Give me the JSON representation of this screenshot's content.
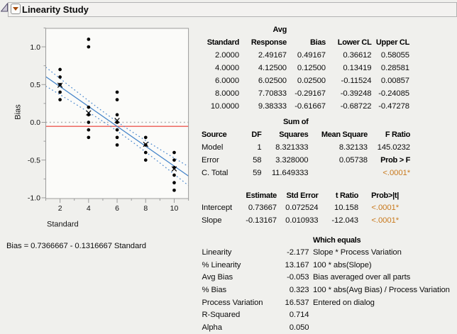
{
  "header": {
    "title": "Linearity Study",
    "outline_icon": "collapsed-tree-triangle",
    "disclosure_icon": "disclosure-triangle-down"
  },
  "equation": "Bias = 0.7366667 - 0.1316667 Standard",
  "colors": {
    "fit_line": "#4282C8",
    "confidence_band": "#4C89CF",
    "avg_bias_line": "#EC5A52",
    "zero_line": "#ABABAB",
    "points": "#000000",
    "frame": "#9C9C9C",
    "plot_background": "#FBFBF9",
    "window_background": "#F0F0ED",
    "significance": "#C97A1E",
    "disclosure_triangle": "#A54A0A"
  },
  "chart_data": {
    "type": "scatter",
    "title": "",
    "xlabel": "Standard",
    "ylabel": "Bias",
    "xlim": [
      1,
      11
    ],
    "ylim": [
      -1.01,
      1.245
    ],
    "x_ticks": [
      2,
      4,
      6,
      8,
      10
    ],
    "x_minor_ticks": [
      1,
      3,
      5,
      7,
      9,
      11
    ],
    "y_ticks": [
      -1.0,
      -0.5,
      0.0,
      0.5,
      1.0
    ],
    "y_tick_labels": [
      "-1.0",
      "-0.5",
      "0.0",
      "0.5",
      "1.0"
    ],
    "y_minor_ticks": [
      -0.75,
      -0.25,
      0.25,
      0.75,
      1.25
    ],
    "grid": false,
    "points": [
      {
        "standard": 2,
        "bias_values": [
          0.3,
          0.4,
          0.5,
          0.6,
          0.7
        ]
      },
      {
        "standard": 4,
        "bias_values": [
          -0.2,
          -0.1,
          0.0,
          0.1,
          0.2,
          1.0,
          1.1
        ]
      },
      {
        "standard": 6,
        "bias_values": [
          -0.3,
          -0.2,
          -0.1,
          0.0,
          0.1,
          0.3,
          0.4
        ]
      },
      {
        "standard": 8,
        "bias_values": [
          -0.5,
          -0.4,
          -0.3,
          -0.2
        ]
      },
      {
        "standard": 10,
        "bias_values": [
          -0.9,
          -0.8,
          -0.7,
          -0.6,
          -0.5,
          -0.4
        ]
      }
    ],
    "mean_markers": [
      {
        "standard": 2,
        "bias": 0.49167
      },
      {
        "standard": 4,
        "bias": 0.125
      },
      {
        "standard": 6,
        "bias": 0.025
      },
      {
        "standard": 8,
        "bias": -0.29167
      },
      {
        "standard": 10,
        "bias": -0.61667
      }
    ],
    "fit_line": {
      "intercept": 0.7366667,
      "slope": -0.1316667
    },
    "confidence_band": {
      "halfwidth_scale": 0.47941,
      "n": 60,
      "xbar": 6,
      "sxx": 480
    },
    "reference_lines": [
      {
        "y": 0.0,
        "style": "dotted",
        "role": "zero_line"
      },
      {
        "y": -0.053,
        "style": "solid",
        "role": "avg_bias_line"
      }
    ]
  },
  "tables": [
    {
      "name": "bias-by-standard-table",
      "rows": [
        [
          "",
          {
            "t": "Avg",
            "b": 1
          },
          "",
          "",
          ""
        ],
        [
          {
            "t": "Standard",
            "b": 1
          },
          {
            "t": "Response",
            "b": 1
          },
          {
            "t": "Bias",
            "b": 1
          },
          {
            "t": "Lower CL",
            "b": 1
          },
          {
            "t": "Upper CL",
            "b": 1
          }
        ],
        [
          "2.0000",
          "2.49167",
          "0.49167",
          "0.36612",
          "0.58055"
        ],
        [
          "4.0000",
          "4.12500",
          "0.12500",
          "0.13419",
          "0.28581"
        ],
        [
          "6.0000",
          "6.02500",
          "0.02500",
          "-0.11524",
          "0.00857"
        ],
        [
          "8.0000",
          "7.70833",
          "-0.29167",
          "-0.39248",
          "-0.24085"
        ],
        [
          "10.0000",
          "9.38333",
          "-0.61667",
          "-0.68722",
          "-0.47278"
        ]
      ]
    },
    {
      "name": "anova-table",
      "rows": [
        [
          "",
          "",
          {
            "t": "Sum of",
            "b": 1
          },
          "",
          ""
        ],
        [
          {
            "t": "Source",
            "b": 1
          },
          {
            "t": "DF",
            "b": 1
          },
          {
            "t": "Squares",
            "b": 1
          },
          {
            "t": "Mean Square",
            "b": 1
          },
          {
            "t": "F Ratio",
            "b": 1
          }
        ],
        [
          "Model",
          "1",
          "8.321333",
          "8.32133",
          "145.0232"
        ],
        [
          "Error",
          "58",
          "3.328000",
          "0.05738",
          {
            "t": "Prob > F",
            "b": 1
          }
        ],
        [
          "C. Total",
          "59",
          "11.649333",
          "",
          {
            "t": "<.0001*",
            "o": 1
          }
        ]
      ]
    },
    {
      "name": "parameter-estimates-table",
      "rows": [
        [
          "",
          {
            "t": "Estimate",
            "b": 1
          },
          {
            "t": "Std Error",
            "b": 1
          },
          {
            "t": "t Ratio",
            "b": 1
          },
          {
            "t": "Prob>|t|",
            "b": 1
          }
        ],
        [
          "Intercept",
          "0.73667",
          "0.072524",
          "10.158",
          {
            "t": "<.0001*",
            "o": 1
          }
        ],
        [
          "Slope",
          "-0.13167",
          "0.010933",
          "-12.043",
          {
            "t": "<.0001*",
            "o": 1
          }
        ]
      ]
    },
    {
      "name": "linearity-summary-table",
      "rows": [
        [
          "",
          "",
          {
            "t": "Which equals",
            "b": 1
          }
        ],
        [
          "Linearity",
          "-2.177",
          "Slope * Process Variation"
        ],
        [
          "% Linearity",
          "13.167",
          "100 * abs(Slope)"
        ],
        [
          "Avg Bias",
          "-0.053",
          "Bias averaged over all parts"
        ],
        [
          "% Bias",
          "0.323",
          "100 * abs(Avg Bias) / Process Variation"
        ],
        [
          "Process Variation",
          "16.537",
          "Entered on dialog"
        ],
        [
          "R-Squared",
          "0.714",
          ""
        ],
        [
          "Alpha",
          "0.050",
          ""
        ]
      ]
    }
  ]
}
